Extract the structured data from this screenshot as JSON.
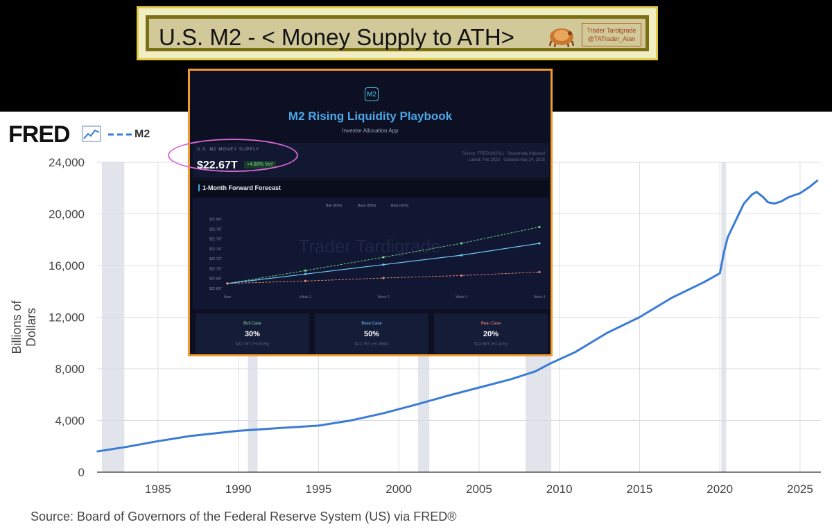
{
  "banner": {
    "title": "U.S. M2 - < Money Supply to ATH>",
    "badge_line1": "Trader Tardigrade",
    "badge_line2": "@TATrader_Alan"
  },
  "fred": {
    "logo": "FRED",
    "legend_label": "M2",
    "ylabel": "Billions of Dollars",
    "source": "Source: Board of Governors of the Federal Reserve System (US) via FRED®"
  },
  "app": {
    "icon_text": "M2",
    "title": "M2 Rising Liquidity Playbook",
    "subtitle": "Investor Allocation App",
    "supply_label": "U.S. M2 MONEY SUPPLY",
    "supply_value": "$22.67T",
    "yoy": "+4.88% YoY",
    "source_note_1": "Source: FRED (M2SL) · Seasonally Adjusted",
    "source_note_2": "Latest: Feb 2026 · Updated Mar 24, 2026",
    "forecast_title": "1-Month Forward Forecast",
    "watermark": "Trader Tardigrade",
    "cards": [
      {
        "label": "Bull Case",
        "pct": "30%",
        "value": "$22.78T (+0.51%)",
        "color": "#7be08f"
      },
      {
        "label": "Base Case",
        "pct": "50%",
        "value": "$22.75T (+0.36%)",
        "color": "#6ec7f2"
      },
      {
        "label": "Bear Case",
        "pct": "20%",
        "value": "$22.69T (+0.11%)",
        "color": "#f08a7a"
      }
    ]
  },
  "chart_data": [
    {
      "type": "line",
      "title": "",
      "ylabel": "Billions of Dollars",
      "xlabel": "",
      "xlim": [
        1981.2,
        2026.3
      ],
      "ylim": [
        0,
        24000
      ],
      "yticks": [
        0,
        4000,
        8000,
        12000,
        16000,
        20000,
        24000
      ],
      "ytick_labels": [
        "0",
        "4,000",
        "8,000",
        "12,000",
        "16,000",
        "20,000",
        "24,000"
      ],
      "xticks": [
        1985,
        1990,
        1995,
        2000,
        2005,
        2010,
        2015,
        2020,
        2025
      ],
      "recessions": [
        [
          1981.5,
          1982.9
        ],
        [
          1990.6,
          1991.2
        ],
        [
          2001.2,
          2001.9
        ],
        [
          2007.9,
          2009.5
        ],
        [
          2020.1,
          2020.4
        ]
      ],
      "series": [
        {
          "name": "M2",
          "color": "#3a7bd5",
          "x": [
            1981.2,
            1983,
            1985,
            1987,
            1990,
            1993,
            1995,
            1997,
            1999,
            2001,
            2003,
            2005,
            2007,
            2008.5,
            2009.5,
            2011,
            2013,
            2015,
            2017,
            2019,
            2020.0,
            2020.25,
            2020.5,
            2021,
            2021.5,
            2022.0,
            2022.3,
            2022.7,
            2023.0,
            2023.4,
            2023.8,
            2024.3,
            2025.0,
            2025.6,
            2026.1
          ],
          "values": [
            1600,
            1950,
            2400,
            2800,
            3200,
            3450,
            3600,
            4000,
            4550,
            5200,
            5900,
            6550,
            7200,
            7800,
            8450,
            9300,
            10800,
            12000,
            13500,
            14700,
            15400,
            17000,
            18200,
            19500,
            20800,
            21500,
            21700,
            21300,
            20900,
            20800,
            20950,
            21300,
            21600,
            22100,
            22600
          ]
        }
      ]
    },
    {
      "type": "line",
      "title": "1-Month Forward Forecast",
      "categories": [
        "Now",
        "Week 1",
        "Week 2",
        "Week 3",
        "Week 4"
      ],
      "ylim": [
        22.66,
        22.8
      ],
      "ytick_labels": [
        "$22.66T",
        "$22.68T",
        "$22.70T",
        "$22.72T",
        "$22.74T",
        "$22.76T",
        "$22.78T",
        "$22.80T"
      ],
      "legend": [
        "Bull (30%)",
        "Base (50%)",
        "Bear (20%)"
      ],
      "series": [
        {
          "name": "Bull (30%)",
          "color": "#7be08f",
          "dashed": true,
          "values": [
            22.67,
            22.696,
            22.723,
            22.751,
            22.784
          ]
        },
        {
          "name": "Base (50%)",
          "color": "#6ec7f2",
          "dashed": false,
          "values": [
            22.67,
            22.689,
            22.708,
            22.727,
            22.751
          ]
        },
        {
          "name": "Bear (20%)",
          "color": "#f08a7a",
          "dashed": true,
          "values": [
            22.67,
            22.675,
            22.681,
            22.686,
            22.693
          ]
        }
      ]
    }
  ]
}
